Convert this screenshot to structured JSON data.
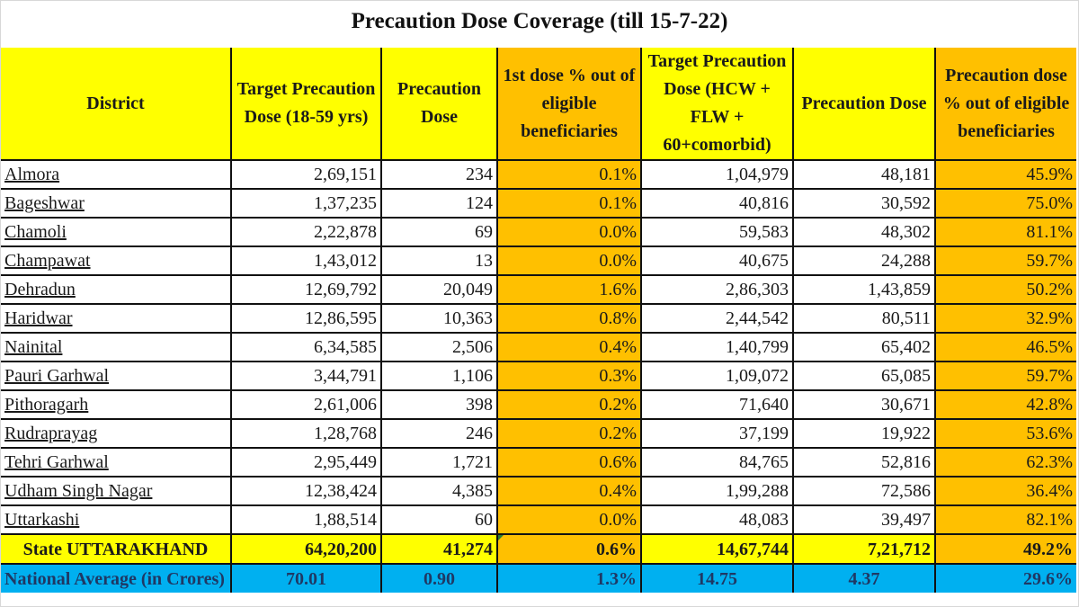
{
  "title": "Precaution Dose Coverage (till 15-7-22)",
  "colors": {
    "header_yellow": "#ffff00",
    "orange": "#ffc000",
    "national_blue": "#00b0f0"
  },
  "headers": [
    "District",
    "Target Precaution Dose (18-59 yrs)",
    "Precaution Dose",
    "1st dose % out of eligible beneficiaries",
    "Target Precaution Dose (HCW + FLW + 60+comorbid)",
    "Precaution Dose",
    "Precaution dose % out of eligible beneficiaries"
  ],
  "rows": [
    [
      "Almora",
      "2,69,151",
      "234",
      "0.1%",
      "1,04,979",
      "48,181",
      "45.9%"
    ],
    [
      "Bageshwar",
      "1,37,235",
      "124",
      "0.1%",
      "40,816",
      "30,592",
      "75.0%"
    ],
    [
      "Chamoli",
      "2,22,878",
      "69",
      "0.0%",
      "59,583",
      "48,302",
      "81.1%"
    ],
    [
      "Champawat",
      "1,43,012",
      "13",
      "0.0%",
      "40,675",
      "24,288",
      "59.7%"
    ],
    [
      "Dehradun",
      "12,69,792",
      "20,049",
      "1.6%",
      "2,86,303",
      "1,43,859",
      "50.2%"
    ],
    [
      "Haridwar",
      "12,86,595",
      "10,363",
      "0.8%",
      "2,44,542",
      "80,511",
      "32.9%"
    ],
    [
      "Nainital",
      "6,34,585",
      "2,506",
      "0.4%",
      "1,40,799",
      "65,402",
      "46.5%"
    ],
    [
      "Pauri Garhwal",
      "3,44,791",
      "1,106",
      "0.3%",
      "1,09,072",
      "65,085",
      "59.7%"
    ],
    [
      "Pithoragarh",
      "2,61,006",
      "398",
      "0.2%",
      "71,640",
      "30,671",
      "42.8%"
    ],
    [
      "Rudraprayag",
      "1,28,768",
      "246",
      "0.2%",
      "37,199",
      "19,922",
      "53.6%"
    ],
    [
      "Tehri Garhwal",
      "2,95,449",
      "1,721",
      "0.6%",
      "84,765",
      "52,816",
      "62.3%"
    ],
    [
      "Udham Singh Nagar",
      "12,38,424",
      "4,385",
      "0.4%",
      "1,99,288",
      "72,586",
      "36.4%"
    ],
    [
      "Uttarkashi",
      "1,88,514",
      "60",
      "0.0%",
      "48,083",
      "39,497",
      "82.1%"
    ]
  ],
  "state_row": [
    "State UTTARAKHAND",
    "64,20,200",
    "41,274",
    "0.6%",
    "14,67,744",
    "7,21,712",
    "49.2%"
  ],
  "national_row": [
    "National Average (in Crores)",
    "70.01",
    "0.90",
    "1.3%",
    "14.75",
    "4.37",
    "29.6%"
  ]
}
